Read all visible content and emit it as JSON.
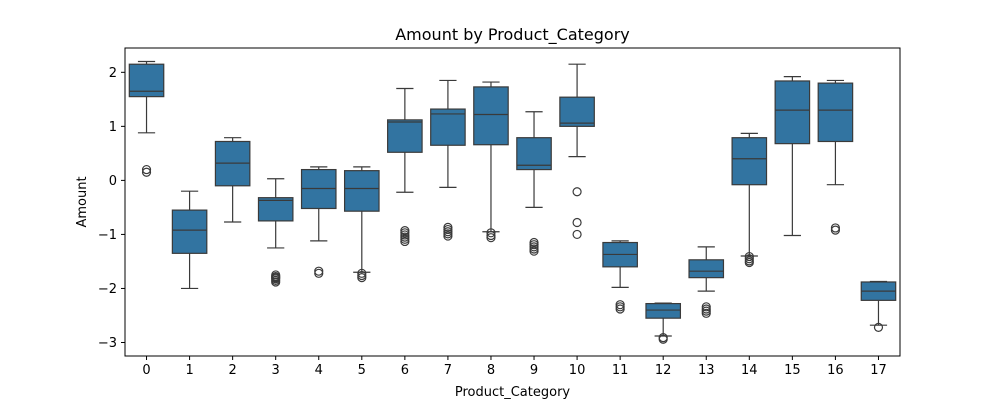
{
  "chart_data": {
    "type": "box",
    "title": "Amount by Product_Category",
    "xlabel": "Product_Category",
    "ylabel": "Amount",
    "ylim": [
      -3.25,
      2.45
    ],
    "yticks": [
      -3,
      -2,
      -1,
      0,
      1,
      2
    ],
    "ytick_labels": [
      "−3",
      "−2",
      "−1",
      "0",
      "1",
      "2"
    ],
    "categories": [
      "0",
      "1",
      "2",
      "3",
      "4",
      "5",
      "6",
      "7",
      "8",
      "9",
      "10",
      "11",
      "12",
      "13",
      "14",
      "15",
      "16",
      "17"
    ],
    "box_color": "#3274a1",
    "edge_color": "#3a3a3a",
    "boxes": [
      {
        "category": "0",
        "whislo": 0.88,
        "q1": 1.55,
        "med": 1.65,
        "q3": 2.15,
        "whishi": 2.2,
        "fliers": [
          0.2,
          0.15
        ]
      },
      {
        "category": "1",
        "whislo": -2.0,
        "q1": -1.35,
        "med": -0.92,
        "q3": -0.55,
        "whishi": -0.2,
        "fliers": []
      },
      {
        "category": "2",
        "whislo": -0.77,
        "q1": -0.1,
        "med": 0.32,
        "q3": 0.72,
        "whishi": 0.79,
        "fliers": []
      },
      {
        "category": "3",
        "whislo": -1.25,
        "q1": -0.75,
        "med": -0.37,
        "q3": -0.32,
        "whishi": 0.03,
        "fliers": [
          -1.75,
          -1.78,
          -1.8,
          -1.82,
          -1.85,
          -1.88
        ]
      },
      {
        "category": "4",
        "whislo": -1.12,
        "q1": -0.52,
        "med": -0.15,
        "q3": 0.2,
        "whishi": 0.25,
        "fliers": [
          -1.68,
          -1.72
        ]
      },
      {
        "category": "5",
        "whislo": -1.7,
        "q1": -0.57,
        "med": -0.15,
        "q3": 0.18,
        "whishi": 0.25,
        "fliers": [
          -1.72,
          -1.76,
          -1.8
        ]
      },
      {
        "category": "6",
        "whislo": -0.22,
        "q1": 0.52,
        "med": 1.08,
        "q3": 1.12,
        "whishi": 1.7,
        "fliers": [
          -0.93,
          -0.97,
          -1.01,
          -1.05,
          -1.09,
          -1.13
        ]
      },
      {
        "category": "7",
        "whislo": -0.13,
        "q1": 0.65,
        "med": 1.23,
        "q3": 1.32,
        "whishi": 1.85,
        "fliers": [
          -0.87,
          -0.91,
          -0.95,
          -0.99,
          -1.03
        ]
      },
      {
        "category": "8",
        "whislo": -0.95,
        "q1": 0.66,
        "med": 1.22,
        "q3": 1.73,
        "whishi": 1.82,
        "fliers": [
          -0.97,
          -1.02,
          -1.06
        ]
      },
      {
        "category": "9",
        "whislo": -0.5,
        "q1": 0.2,
        "med": 0.28,
        "q3": 0.79,
        "whishi": 1.27,
        "fliers": [
          -1.15,
          -1.19,
          -1.23,
          -1.27,
          -1.31
        ]
      },
      {
        "category": "10",
        "whislo": 0.44,
        "q1": 1.0,
        "med": 1.06,
        "q3": 1.54,
        "whishi": 2.15,
        "fliers": [
          -0.21,
          -0.78,
          -1.0
        ]
      },
      {
        "category": "11",
        "whislo": -1.98,
        "q1": -1.6,
        "med": -1.37,
        "q3": -1.15,
        "whishi": -1.12,
        "fliers": [
          -2.3,
          -2.34,
          -2.38
        ]
      },
      {
        "category": "12",
        "whislo": -2.88,
        "q1": -2.55,
        "med": -2.4,
        "q3": -2.28,
        "whishi": -2.27,
        "fliers": [
          -2.91,
          -2.94
        ]
      },
      {
        "category": "13",
        "whislo": -2.05,
        "q1": -1.8,
        "med": -1.68,
        "q3": -1.47,
        "whishi": -1.23,
        "fliers": [
          -2.34,
          -2.38,
          -2.42,
          -2.46
        ]
      },
      {
        "category": "14",
        "whislo": -1.4,
        "q1": -0.08,
        "med": 0.4,
        "q3": 0.79,
        "whishi": 0.87,
        "fliers": [
          -1.41,
          -1.45,
          -1.49,
          -1.52
        ]
      },
      {
        "category": "15",
        "whislo": -1.02,
        "q1": 0.68,
        "med": 1.3,
        "q3": 1.84,
        "whishi": 1.92,
        "fliers": []
      },
      {
        "category": "16",
        "whislo": -0.08,
        "q1": 0.72,
        "med": 1.3,
        "q3": 1.8,
        "whishi": 1.85,
        "fliers": [
          -0.88,
          -0.92
        ]
      },
      {
        "category": "17",
        "whislo": -2.68,
        "q1": -2.22,
        "med": -2.05,
        "q3": -1.88,
        "whishi": -1.87,
        "fliers": [
          -2.72
        ]
      }
    ]
  }
}
